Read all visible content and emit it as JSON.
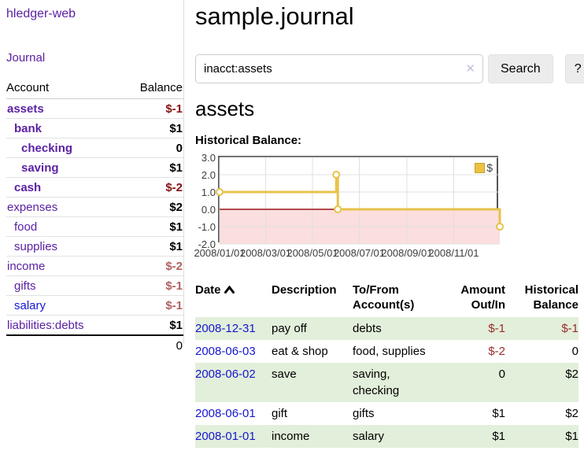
{
  "app": {
    "title": "hledger-web",
    "nav_journal": "Journal"
  },
  "sidebar": {
    "header": {
      "account": "Account",
      "balance": "Balance"
    },
    "accounts": [
      {
        "name": "assets",
        "balance": "$-1",
        "indent": 1,
        "bold": true,
        "name_color": "purple",
        "balance_class": "neg-strong"
      },
      {
        "name": "bank",
        "balance": "$1",
        "indent": 2,
        "bold": true,
        "name_color": "purple",
        "balance_class": "pos"
      },
      {
        "name": "checking",
        "balance": "0",
        "indent": 3,
        "bold": true,
        "name_color": "purple",
        "balance_class": "pos"
      },
      {
        "name": "saving",
        "balance": "$1",
        "indent": 3,
        "bold": true,
        "name_color": "purple",
        "balance_class": "pos"
      },
      {
        "name": "cash",
        "balance": "$-2",
        "indent": 2,
        "bold": true,
        "name_color": "purple",
        "balance_class": "neg-strong"
      },
      {
        "name": "expenses",
        "balance": "$2",
        "indent": 1,
        "bold": false,
        "name_color": "purple",
        "balance_class": "pos"
      },
      {
        "name": "food",
        "balance": "$1",
        "indent": 2,
        "bold": false,
        "name_color": "purple",
        "balance_class": "pos"
      },
      {
        "name": "supplies",
        "balance": "$1",
        "indent": 2,
        "bold": false,
        "name_color": "purple",
        "balance_class": "pos"
      },
      {
        "name": "income",
        "balance": "$-2",
        "indent": 1,
        "bold": false,
        "name_color": "purple",
        "balance_class": "neg-dim"
      },
      {
        "name": "gifts",
        "balance": "$-1",
        "indent": 2,
        "bold": false,
        "name_color": "purple",
        "balance_class": "neg-dim"
      },
      {
        "name": "salary",
        "balance": "$-1",
        "indent": 2,
        "bold": false,
        "name_color": "blue",
        "balance_class": "neg-dim"
      },
      {
        "name": "liabilities:debts",
        "balance": "$1",
        "indent": 1,
        "bold": false,
        "name_color": "purple",
        "balance_class": "pos"
      }
    ],
    "total": "0"
  },
  "main": {
    "title": "sample.journal",
    "search": {
      "value": "inacct:assets",
      "clear_glyph": "✕",
      "button_label": "Search",
      "help_label": "?"
    },
    "account_heading": "assets",
    "chart_label": "Historical Balance:"
  },
  "chart_data": {
    "type": "line",
    "title": "Historical Balance",
    "series": [
      {
        "name": "$",
        "color": "#e8c24a",
        "steps": true,
        "points": [
          [
            "2008-01-01",
            1
          ],
          [
            "2008-06-01",
            2
          ],
          [
            "2008-06-03",
            0
          ],
          [
            "2008-12-31",
            -1
          ]
        ]
      }
    ],
    "xmin": "2008-01-01",
    "xmax": "2008-12-31",
    "ylim": [
      -2,
      3
    ],
    "yticks": [
      3.0,
      2.0,
      1.0,
      0.0,
      -1.0,
      -2.0
    ],
    "xticks": [
      "2008/01/01",
      "2008/03/01",
      "2008/05/01",
      "2008/07/01",
      "2008/09/01",
      "2008/11/01"
    ],
    "grid": true,
    "legend_position": "top-right",
    "colors": {
      "grid": "#e0e0e0",
      "negative_region": "#fbdede",
      "zero_line": "#991414",
      "border": "#545454"
    }
  },
  "register": {
    "headers": {
      "date": "Date",
      "description": "Description",
      "accounts": "To/From Account(s)",
      "amount": "Amount Out/In",
      "balance": "Historical Balance"
    },
    "rows": [
      {
        "date": "2008-12-31",
        "description": "pay off",
        "accounts": "debts",
        "amount": "$-1",
        "amount_neg": true,
        "balance": "$-1",
        "balance_neg": true
      },
      {
        "date": "2008-06-03",
        "description": "eat & shop",
        "accounts": "food, supplies",
        "amount": "$-2",
        "amount_neg": true,
        "balance": "0",
        "balance_neg": false
      },
      {
        "date": "2008-06-02",
        "description": "save",
        "accounts": "saving, checking",
        "amount": "0",
        "amount_neg": false,
        "balance": "$2",
        "balance_neg": false
      },
      {
        "date": "2008-06-01",
        "description": "gift",
        "accounts": "gifts",
        "amount": "$1",
        "amount_neg": false,
        "balance": "$2",
        "balance_neg": false
      },
      {
        "date": "2008-01-01",
        "description": "income",
        "accounts": "salary",
        "amount": "$1",
        "amount_neg": false,
        "balance": "$1",
        "balance_neg": false
      }
    ]
  }
}
